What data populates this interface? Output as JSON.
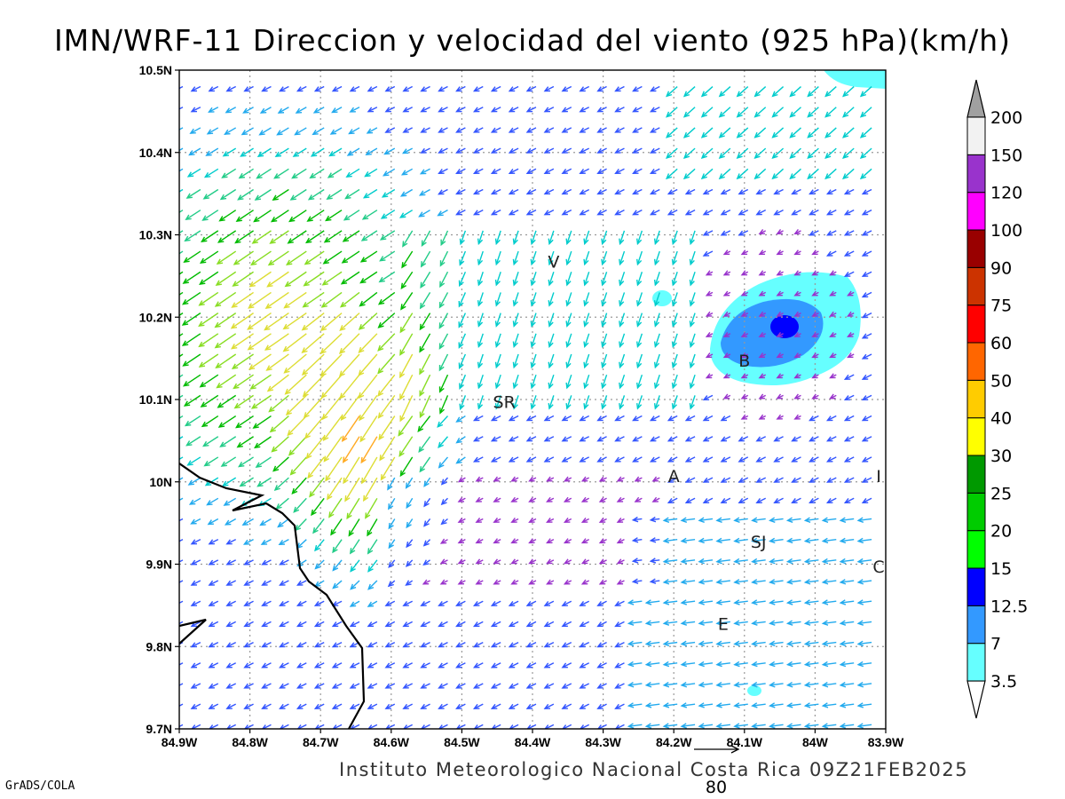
{
  "title": "IMN/WRF-11 Direccion y velocidad del viento (925 hPa)(km/h)",
  "footer": "Instituto Meteorologico Nacional Costa Rica 09Z21FEB2025",
  "credit": "GrADS/COLA",
  "reference_vector": {
    "label": "80",
    "value": 80,
    "unit": "km/h"
  },
  "map": {
    "lon_range": [
      -84.9,
      -83.9
    ],
    "lat_range": [
      9.7,
      10.5
    ],
    "x_tick_labels": [
      "84.9W",
      "84.8W",
      "84.7W",
      "84.6W",
      "84.5W",
      "84.4W",
      "84.3W",
      "84.2W",
      "84.1W",
      "84W",
      "83.9W"
    ],
    "y_tick_labels": [
      "9.7N",
      "9.8N",
      "9.9N",
      "10N",
      "10.1N",
      "10.2N",
      "10.3N",
      "10.4N",
      "10.5N"
    ],
    "grid": "dotted",
    "cities": [
      {
        "label": "V",
        "lon": -84.37,
        "lat": 10.26
      },
      {
        "label": "SR",
        "lon": -84.44,
        "lat": 10.09
      },
      {
        "label": "B",
        "lon": -84.1,
        "lat": 10.14
      },
      {
        "label": "A",
        "lon": -84.2,
        "lat": 10.0
      },
      {
        "label": "I",
        "lon": -83.91,
        "lat": 10.0
      },
      {
        "label": "SJ",
        "lon": -84.08,
        "lat": 9.92
      },
      {
        "label": "C",
        "lon": -83.91,
        "lat": 9.89
      },
      {
        "label": "E",
        "lon": -84.13,
        "lat": 9.82
      }
    ]
  },
  "colorbar": {
    "labels": [
      "3.5",
      "7",
      "12.5",
      "15",
      "20",
      "25",
      "30",
      "40",
      "50",
      "60",
      "75",
      "90",
      "100",
      "120",
      "150",
      "200"
    ],
    "colors": [
      "#66ffff",
      "#3399ff",
      "#0000ff",
      "#00ff00",
      "#00cc00",
      "#009900",
      "#ffff00",
      "#ffcc00",
      "#ff6600",
      "#ff0000",
      "#cc3300",
      "#990000",
      "#ff00ff",
      "#9933cc",
      "#f2f2f2",
      "#a0a0a0"
    ]
  }
}
